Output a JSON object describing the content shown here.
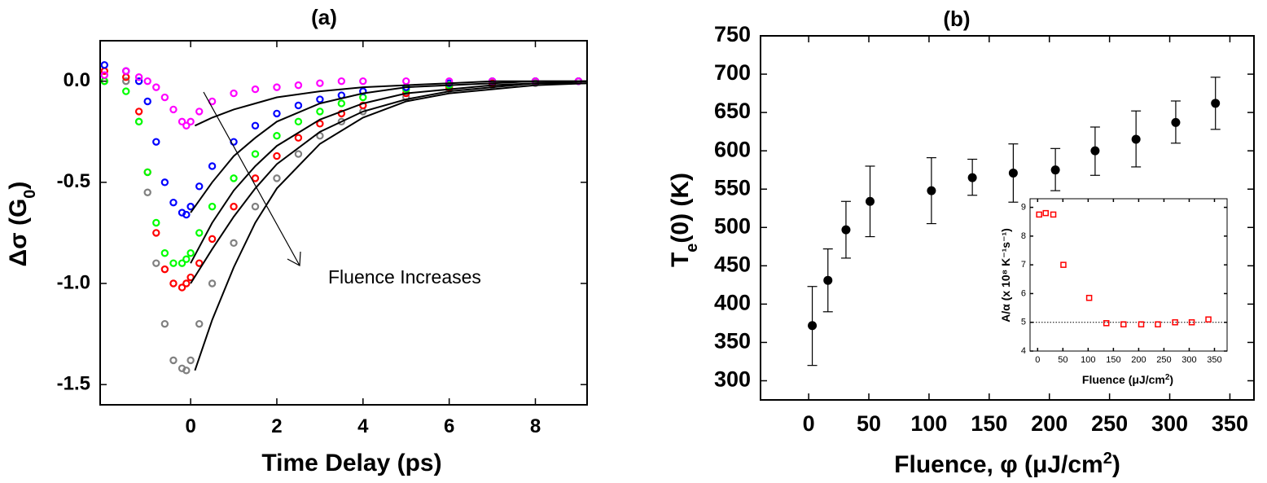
{
  "chart_data": [
    {
      "type": "scatter",
      "panel_label": "(a)",
      "xlabel": "Time Delay (ps)",
      "ylabel_main": "Δσ (G",
      "ylabel_sub": "0",
      "ylabel_close": ")",
      "xlim": [
        -2.1,
        9.2
      ],
      "ylim": [
        -1.6,
        0.2
      ],
      "xticks": [
        0,
        2,
        4,
        6,
        8
      ],
      "xtick_labels": [
        "0",
        "2",
        "4",
        "6",
        "8"
      ],
      "yticks": [
        0.0,
        -0.5,
        -1.0,
        -1.5
      ],
      "ytick_labels": [
        "0.0",
        "-0.5",
        "-1.0",
        "-1.5"
      ],
      "annotation": "Fluence Increases",
      "series": [
        {
          "color": "#808080",
          "x": [
            -2.0,
            -1.5,
            -1.2,
            -1.0,
            -0.8,
            -0.6,
            -0.4,
            -0.2,
            -0.1,
            0.0,
            0.2,
            0.5,
            1.0,
            1.5,
            2.0,
            2.5,
            3.0,
            3.5,
            4.0,
            5.0,
            6.0,
            7.0,
            8.0,
            9.0
          ],
          "y": [
            0.0,
            0.0,
            -0.2,
            -0.55,
            -0.9,
            -1.2,
            -1.38,
            -1.42,
            -1.43,
            -1.38,
            -1.2,
            -1.0,
            -0.8,
            -0.62,
            -0.48,
            -0.36,
            -0.27,
            -0.2,
            -0.15,
            -0.08,
            -0.04,
            -0.02,
            -0.01,
            0.0
          ]
        },
        {
          "color": "#ff0000",
          "x": [
            -2.0,
            -1.5,
            -1.2,
            -1.0,
            -0.8,
            -0.6,
            -0.4,
            -0.2,
            -0.1,
            0.0,
            0.2,
            0.5,
            1.0,
            1.5,
            2.0,
            2.5,
            3.0,
            3.5,
            4.0,
            5.0,
            6.0,
            7.0,
            8.0,
            9.0
          ],
          "y": [
            0.05,
            0.02,
            -0.15,
            -0.45,
            -0.75,
            -0.93,
            -1.0,
            -1.02,
            -1.0,
            -0.97,
            -0.9,
            -0.78,
            -0.62,
            -0.48,
            -0.37,
            -0.28,
            -0.21,
            -0.16,
            -0.12,
            -0.06,
            -0.03,
            -0.01,
            0.0,
            0.0
          ]
        },
        {
          "color": "#00ff00",
          "x": [
            -2.0,
            -1.5,
            -1.2,
            -1.0,
            -0.8,
            -0.6,
            -0.4,
            -0.2,
            -0.1,
            0.0,
            0.2,
            0.5,
            1.0,
            1.5,
            2.0,
            2.5,
            3.0,
            3.5,
            4.0,
            5.0,
            6.0,
            7.0,
            8.0,
            9.0
          ],
          "y": [
            0.0,
            -0.05,
            -0.2,
            -0.45,
            -0.7,
            -0.85,
            -0.9,
            -0.9,
            -0.88,
            -0.85,
            -0.75,
            -0.62,
            -0.48,
            -0.36,
            -0.27,
            -0.2,
            -0.15,
            -0.11,
            -0.08,
            -0.04,
            -0.02,
            0.0,
            0.0,
            0.0
          ]
        },
        {
          "color": "#0000ff",
          "x": [
            -2.0,
            -1.5,
            -1.2,
            -1.0,
            -0.8,
            -0.6,
            -0.4,
            -0.2,
            -0.1,
            0.0,
            0.2,
            0.5,
            1.0,
            1.5,
            2.0,
            2.5,
            3.0,
            3.5,
            4.0,
            5.0,
            6.0,
            7.0,
            8.0,
            9.0
          ],
          "y": [
            0.08,
            0.05,
            0.0,
            -0.1,
            -0.3,
            -0.5,
            -0.6,
            -0.65,
            -0.66,
            -0.62,
            -0.52,
            -0.42,
            -0.3,
            -0.22,
            -0.16,
            -0.12,
            -0.09,
            -0.07,
            -0.05,
            -0.03,
            -0.01,
            0.0,
            0.0,
            0.0
          ]
        },
        {
          "color": "#ff00ff",
          "x": [
            -2.0,
            -1.5,
            -1.2,
            -1.0,
            -0.8,
            -0.6,
            -0.4,
            -0.2,
            -0.1,
            0.0,
            0.2,
            0.5,
            1.0,
            1.5,
            2.0,
            2.5,
            3.0,
            3.5,
            4.0,
            5.0,
            6.0,
            7.0,
            8.0,
            9.0
          ],
          "y": [
            0.03,
            0.05,
            0.02,
            0.0,
            -0.03,
            -0.08,
            -0.14,
            -0.2,
            -0.22,
            -0.2,
            -0.15,
            -0.1,
            -0.06,
            -0.04,
            -0.03,
            -0.02,
            -0.01,
            0.0,
            0.0,
            0.0,
            0.0,
            0.0,
            0.0,
            0.0
          ]
        }
      ],
      "fits": [
        {
          "color": "#000000",
          "x": [
            0.1,
            0.5,
            1.0,
            1.5,
            2.0,
            3.0,
            4.0,
            5.0,
            6.0,
            7.0,
            8.0,
            9.2
          ],
          "y": [
            -1.43,
            -1.18,
            -0.92,
            -0.7,
            -0.53,
            -0.31,
            -0.18,
            -0.1,
            -0.06,
            -0.04,
            -0.02,
            -0.01
          ]
        },
        {
          "color": "#000000",
          "x": [
            0.0,
            0.5,
            1.0,
            1.5,
            2.0,
            3.0,
            4.0,
            5.0,
            6.0,
            7.0,
            8.0,
            9.2
          ],
          "y": [
            -1.0,
            -0.83,
            -0.67,
            -0.53,
            -0.41,
            -0.25,
            -0.15,
            -0.09,
            -0.05,
            -0.03,
            -0.01,
            -0.01
          ]
        },
        {
          "color": "#000000",
          "x": [
            0.0,
            0.5,
            1.0,
            1.5,
            2.0,
            3.0,
            4.0,
            5.0,
            6.0,
            7.0,
            8.0,
            9.2
          ],
          "y": [
            -0.9,
            -0.7,
            -0.54,
            -0.42,
            -0.32,
            -0.19,
            -0.11,
            -0.06,
            -0.04,
            -0.02,
            -0.01,
            0.0
          ]
        },
        {
          "color": "#000000",
          "x": [
            0.0,
            0.5,
            1.0,
            1.5,
            2.0,
            3.0,
            4.0,
            5.0,
            6.0,
            7.0,
            8.0,
            9.2
          ],
          "y": [
            -0.65,
            -0.5,
            -0.37,
            -0.28,
            -0.2,
            -0.11,
            -0.06,
            -0.03,
            -0.02,
            -0.01,
            0.0,
            0.0
          ]
        },
        {
          "color": "#000000",
          "x": [
            0.1,
            0.5,
            1.0,
            1.5,
            2.0,
            3.0,
            4.0,
            5.0,
            6.0,
            7.0,
            8.0,
            9.2
          ],
          "y": [
            -0.22,
            -0.18,
            -0.14,
            -0.11,
            -0.08,
            -0.05,
            -0.03,
            -0.02,
            -0.01,
            0.0,
            0.0,
            0.0
          ]
        }
      ]
    },
    {
      "type": "scatter",
      "panel_label": "(b)",
      "xlabel_main": "Fluence, φ (μJ/cm",
      "xlabel_sup": "2",
      "xlabel_close": ")",
      "ylabel_main": "T",
      "ylabel_sub": "e",
      "ylabel_rest": "(0) (K)",
      "xlim": [
        -40,
        370
      ],
      "ylim": [
        275,
        750
      ],
      "xticks": [
        0,
        50,
        100,
        150,
        200,
        250,
        300,
        350
      ],
      "xtick_labels": [
        "0",
        "50",
        "100",
        "150",
        "200",
        "250",
        "300",
        "350"
      ],
      "yticks": [
        300,
        350,
        400,
        450,
        500,
        550,
        600,
        650,
        700,
        750
      ],
      "ytick_labels": [
        "300",
        "350",
        "400",
        "450",
        "500",
        "550",
        "600",
        "650",
        "700",
        "750"
      ],
      "series": [
        {
          "color": "#000000",
          "x": [
            3,
            16,
            31,
            51,
            102,
            136,
            170,
            205,
            238,
            272,
            305,
            338
          ],
          "y": [
            372,
            431,
            497,
            534,
            548,
            565,
            571,
            575,
            600,
            615,
            637,
            662
          ],
          "err_low": [
            320,
            390,
            460,
            488,
            505,
            542,
            533,
            548,
            568,
            579,
            610,
            628
          ],
          "err_high": [
            423,
            472,
            534,
            580,
            591,
            589,
            609,
            603,
            631,
            652,
            665,
            696
          ]
        }
      ],
      "inset": {
        "type": "scatter",
        "xlabel_main": "Fluence (μJ/cm",
        "xlabel_sup": "2",
        "xlabel_close": ")",
        "ylabel": "A/α (x 10⁸ K⁻¹s⁻¹)",
        "xlim": [
          -15,
          375
        ],
        "ylim": [
          4,
          9.3
        ],
        "xticks": [
          0,
          50,
          100,
          150,
          200,
          250,
          300,
          350
        ],
        "xtick_labels": [
          "0",
          "50",
          "100",
          "150",
          "200",
          "250",
          "300",
          "350"
        ],
        "yticks": [
          4,
          5,
          6,
          7,
          8,
          9
        ],
        "ytick_labels": [
          "4",
          "5",
          "6",
          "7",
          "8",
          "9"
        ],
        "reference_line_y": 5,
        "series": [
          {
            "color": "#ff0000",
            "x": [
              3,
              16,
              31,
              51,
              102,
              136,
              170,
              205,
              238,
              272,
              305,
              338
            ],
            "y": [
              8.75,
              8.8,
              8.75,
              7.0,
              5.85,
              4.97,
              4.93,
              4.93,
              4.93,
              5.0,
              5.0,
              5.1
            ]
          }
        ]
      }
    }
  ]
}
